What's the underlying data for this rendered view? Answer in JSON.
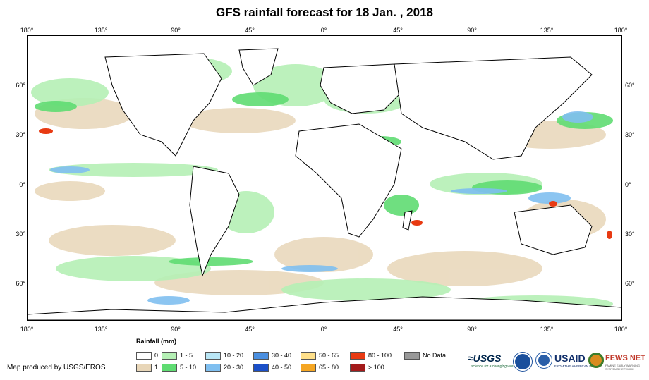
{
  "title": "GFS rainfall forecast for 18 Jan. , 2018",
  "longitude_ticks": [
    "180°",
    "135°",
    "90°",
    "45°",
    "0°",
    "45°",
    "90°",
    "135°",
    "180°"
  ],
  "latitude_ticks": [
    "60°",
    "30°",
    "0°",
    "30°",
    "60°"
  ],
  "legend": {
    "title": "Rainfall (mm)",
    "items": [
      {
        "label": "0",
        "color": "#ffffff"
      },
      {
        "label": "1",
        "color": "#e8d6b8"
      },
      {
        "label": "1 - 5",
        "color": "#b5f0b5"
      },
      {
        "label": "5 - 10",
        "color": "#5fdc72"
      },
      {
        "label": "10 - 20",
        "color": "#b9e6f5"
      },
      {
        "label": "20 - 30",
        "color": "#7fbff0"
      },
      {
        "label": "30 - 40",
        "color": "#4a8fe0"
      },
      {
        "label": "40 - 50",
        "color": "#1b50c8"
      },
      {
        "label": "50 - 65",
        "color": "#ffe08a"
      },
      {
        "label": "65 - 80",
        "color": "#f5a623"
      },
      {
        "label": "80 - 100",
        "color": "#e83a12"
      },
      {
        "label": "> 100",
        "color": "#a31b1b"
      },
      {
        "label": "No Data",
        "color": "#999999"
      }
    ]
  },
  "credit": "Map produced by USGS/EROS",
  "logos": {
    "usgs": "≈USGS",
    "usgs_tagline": "science for a changing world",
    "usaid": "USAID",
    "usaid_tagline": "FROM THE AMERICAN PEOPLE",
    "fews": "FEWS NET",
    "fews_tagline": "FAMINE EARLY WARNING SYSTEMS NETWORK"
  },
  "colors": {
    "land": "#ffffff",
    "dry": "#e8d6b8",
    "light": "#b5f0b5",
    "moderate": "#5fdc72",
    "heavy": "#7fbff0",
    "extreme": "#e83a12"
  }
}
